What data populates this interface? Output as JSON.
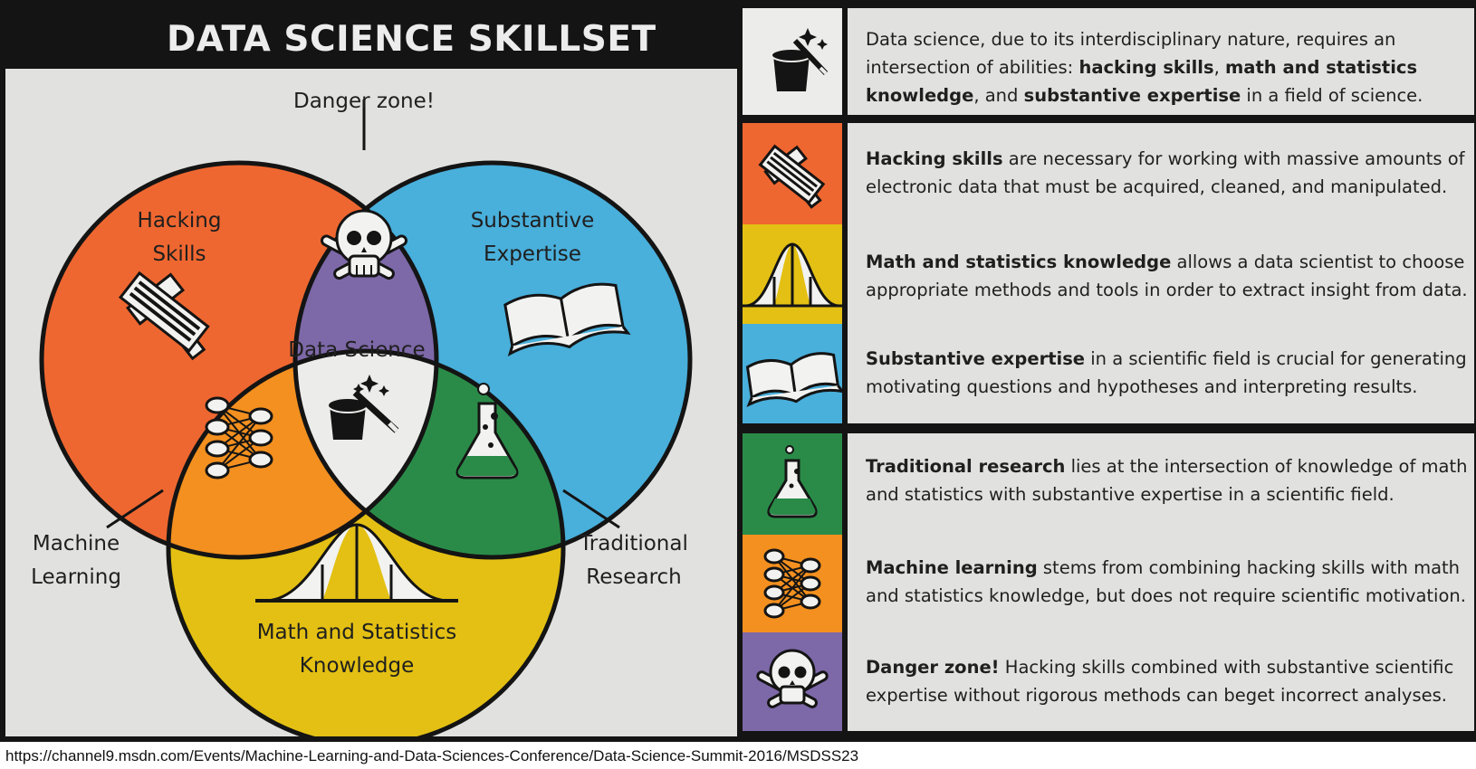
{
  "title": "DATA SCIENCE SKILLSET",
  "venn": {
    "danger_label": "Danger zone!",
    "hacking_line1": "Hacking",
    "hacking_line2": "Skills",
    "substantive_line1": "Substantive",
    "substantive_line2": "Expertise",
    "center_label": "Data Science",
    "math_line1": "Math and Statistics",
    "math_line2": "Knowledge",
    "ml_line1": "Machine",
    "ml_line2": "Learning",
    "tr_line1": "Traditional",
    "tr_line2": "Research"
  },
  "colors": {
    "hacking": "#ef6730",
    "substantive": "#49afdb",
    "math": "#e3c013",
    "danger": "#7d68a8",
    "machine_learning": "#f3901f",
    "traditional_research": "#2a8b48",
    "data_science": "#ececea",
    "panel": "#e1e2df",
    "dark": "#141414"
  },
  "descriptions": {
    "intro": {
      "icon": "magic-hat-icon",
      "pre": "Data science, due to its interdisciplinary nature, requires an intersection of abilities: ",
      "b1": "hacking skills",
      "sep1": ", ",
      "b2": "math and statistics knowledge",
      "sep2": ", and ",
      "b3": "substantive expertise",
      "post": " in a field of science."
    },
    "hacking": {
      "icon": "keyboard-hammer-icon",
      "bold": "Hacking skills",
      "rest": " are necessary for working with massive amounts of electronic data that must be acquired, cleaned, and manipulated."
    },
    "math": {
      "icon": "bell-curve-icon",
      "bold": "Math and statistics knowledge",
      "rest": " allows a data scientist to choose appropriate methods and tools in order to extract insight from data."
    },
    "substantive": {
      "icon": "book-icon",
      "bold": "Substantive expertise",
      "rest": " in a scientific field is crucial for generating motivating questions and hypotheses and interpreting results."
    },
    "traditional": {
      "icon": "flask-icon",
      "bold": "Traditional research",
      "rest": " lies at the intersection of knowledge of math and statistics with substantive expertise in a scientific field."
    },
    "machine": {
      "icon": "neural-network-icon",
      "bold": "Machine learning",
      "rest": " stems from combining hacking skills with math and statistics knowledge, but does not require scientific motivation."
    },
    "danger": {
      "icon": "skull-crossbones-icon",
      "bold": "Danger zone!",
      "rest": " Hacking skills combined with substantive scientific expertise without rigorous methods can beget incorrect analyses."
    }
  },
  "source_url": "https://channel9.msdn.com/Events/Machine-Learning-and-Data-Sciences-Conference/Data-Science-Summit-2016/MSDSS23"
}
